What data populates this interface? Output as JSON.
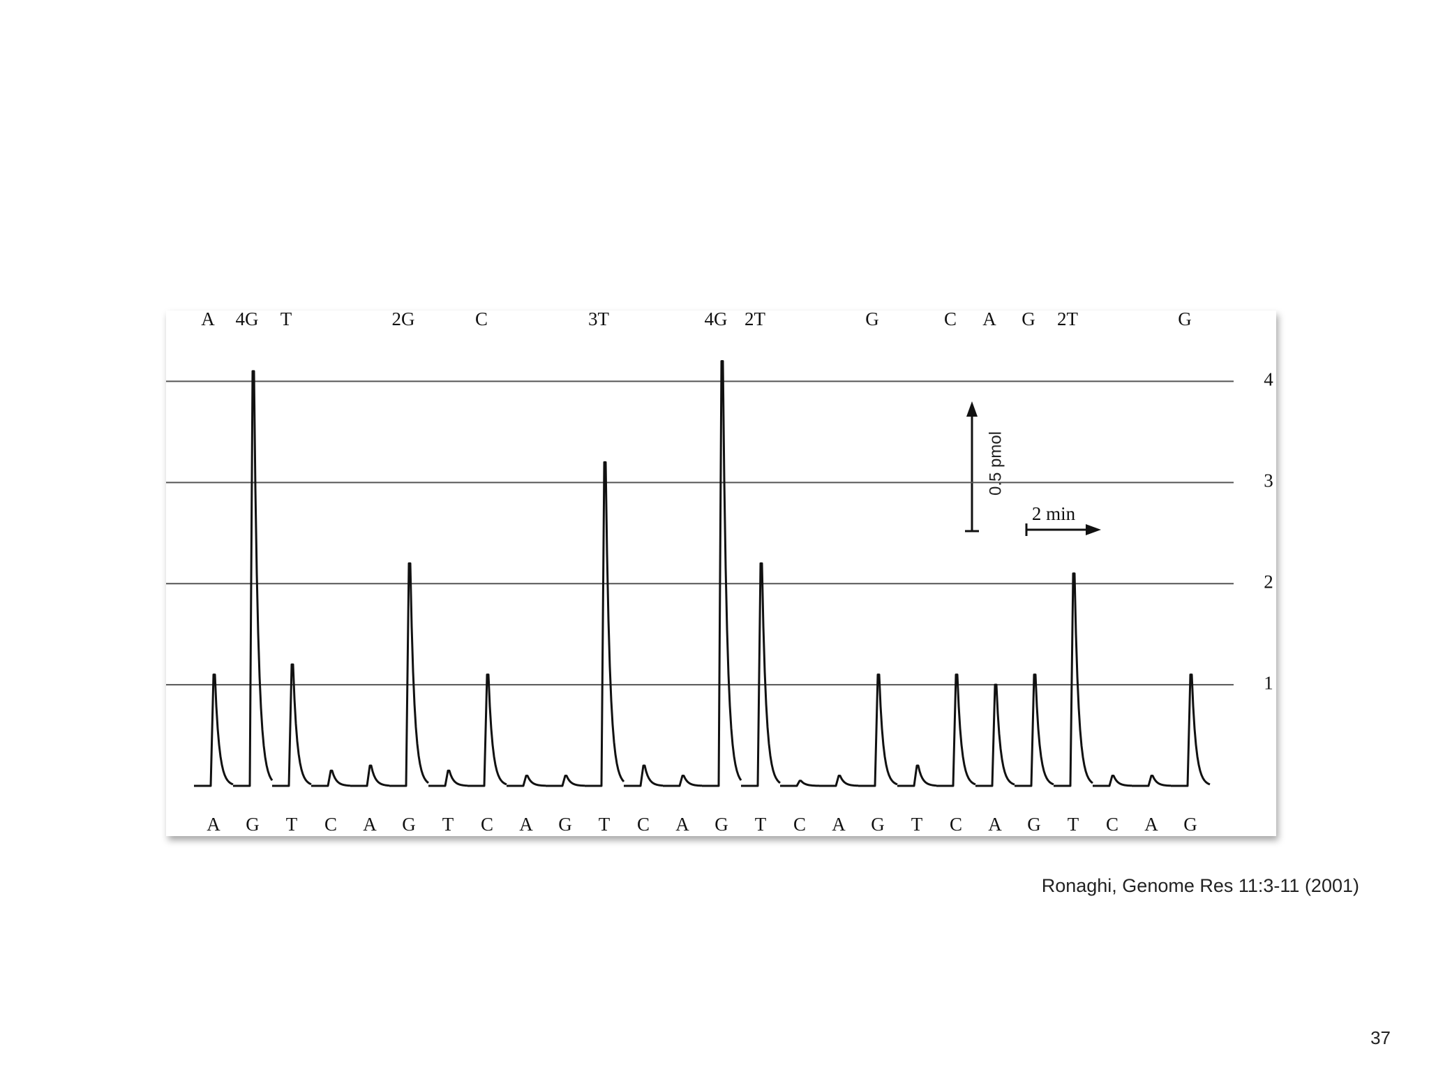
{
  "chart_data": {
    "type": "pyrogram",
    "categories": [
      "A",
      "G",
      "T",
      "C",
      "A",
      "G",
      "T",
      "C",
      "A",
      "G",
      "T",
      "C",
      "A",
      "G",
      "T",
      "C",
      "A",
      "G",
      "T",
      "C",
      "A",
      "G",
      "T",
      "C",
      "A",
      "G"
    ],
    "peak_labels": [
      "A",
      "4G",
      "T",
      null,
      null,
      "2G",
      null,
      "C",
      null,
      null,
      "3T",
      null,
      null,
      "4G",
      "2T",
      null,
      null,
      "G",
      null,
      "C",
      "A",
      "G",
      "2T",
      null,
      null,
      "G"
    ],
    "values": [
      1.1,
      4.1,
      1.2,
      0.15,
      0.2,
      2.2,
      0.15,
      1.1,
      0.1,
      0.1,
      3.2,
      0.2,
      0.1,
      4.2,
      2.2,
      0.05,
      0.1,
      1.1,
      0.2,
      1.1,
      1.0,
      1.1,
      2.1,
      0.1,
      0.1,
      1.1
    ],
    "ylim": [
      0,
      4.7
    ],
    "yticks": [
      1,
      2,
      3,
      4
    ],
    "grid": true,
    "color": "#111111",
    "scale_y_label": "0.5 pmol",
    "scale_x_label": "2 min"
  },
  "citation": "Ronaghi, Genome Res 11:3-11 (2001)",
  "slide_number": "37"
}
